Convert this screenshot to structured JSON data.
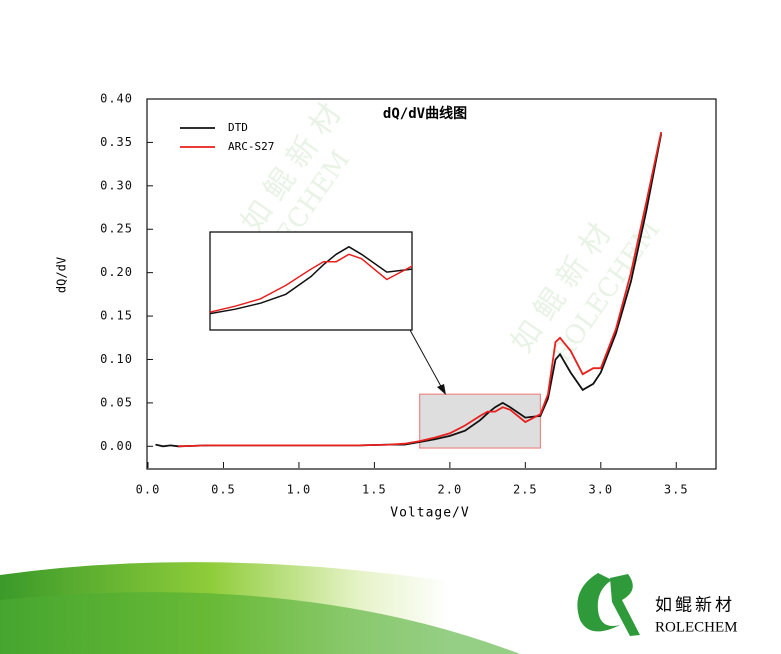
{
  "chart_data": {
    "type": "line",
    "title": "dQ/dV曲线图",
    "x_label": "Voltage/V",
    "y_label": "dQ/dV",
    "x": [
      0.05,
      0.1,
      0.15,
      0.2,
      0.4,
      0.6,
      0.8,
      1.0,
      1.2,
      1.4,
      1.6,
      1.7,
      1.8,
      1.9,
      2.0,
      2.1,
      2.2,
      2.25,
      2.3,
      2.35,
      2.4,
      2.5,
      2.6,
      2.65,
      2.7,
      2.73,
      2.8,
      2.88,
      2.95,
      3.0,
      3.1,
      3.2,
      3.3,
      3.4
    ],
    "series": [
      {
        "name": "DTD",
        "color": "#111111",
        "values": [
          0.002,
          0.0,
          0.001,
          0.0,
          0.001,
          0.001,
          0.001,
          0.001,
          0.001,
          0.001,
          0.002,
          0.002,
          0.005,
          0.008,
          0.012,
          0.018,
          0.03,
          0.038,
          0.045,
          0.05,
          0.045,
          0.033,
          0.035,
          0.055,
          0.1,
          0.106,
          0.085,
          0.065,
          0.072,
          0.085,
          0.13,
          0.19,
          0.27,
          0.36
        ]
      },
      {
        "name": "ARC-S27",
        "color": "#e8201e",
        "values": [
          null,
          null,
          null,
          0.0,
          0.001,
          0.001,
          0.001,
          0.001,
          0.001,
          0.001,
          0.002,
          0.003,
          0.006,
          0.01,
          0.015,
          0.024,
          0.035,
          0.04,
          0.04,
          0.045,
          0.042,
          0.028,
          0.037,
          0.06,
          0.12,
          0.125,
          0.11,
          0.083,
          0.09,
          0.09,
          0.135,
          0.2,
          0.28,
          0.362
        ]
      }
    ],
    "xlim": [
      0,
      3.75
    ],
    "ylim": [
      -0.025,
      0.4
    ],
    "xticks": [
      {
        "value": 0,
        "label": "0.0"
      },
      {
        "value": 0.5,
        "label": "0.5"
      },
      {
        "value": 1,
        "label": "1.0"
      },
      {
        "value": 1.5,
        "label": "1.5"
      },
      {
        "value": 2,
        "label": "2.0"
      },
      {
        "value": 2.5,
        "label": "2.5"
      },
      {
        "value": 3,
        "label": "3.0"
      },
      {
        "value": 3.5,
        "label": "3.5"
      }
    ],
    "yticks": [
      {
        "value": 0,
        "label": "0.00"
      },
      {
        "value": 0.05,
        "label": "0.05"
      },
      {
        "value": 0.1,
        "label": "0.10"
      },
      {
        "value": 0.15,
        "label": "0.15"
      },
      {
        "value": 0.2,
        "label": "0.20"
      },
      {
        "value": 0.25,
        "label": "0.25"
      },
      {
        "value": 0.3,
        "label": "0.30"
      },
      {
        "value": 0.35,
        "label": "0.35"
      },
      {
        "value": 0.4,
        "label": "0.40"
      }
    ],
    "zoom_xlim": [
      1.8,
      2.6
    ],
    "zoom_ylim": [
      -0.002,
      0.06
    ],
    "grid": false,
    "legend": "upper left"
  },
  "watermark": {
    "cn": "如 鲲 新 材",
    "en": "ROLECHEM"
  },
  "footer": {
    "brand_cn": "如鲲新材",
    "brand_en": "ROLECHEM"
  }
}
